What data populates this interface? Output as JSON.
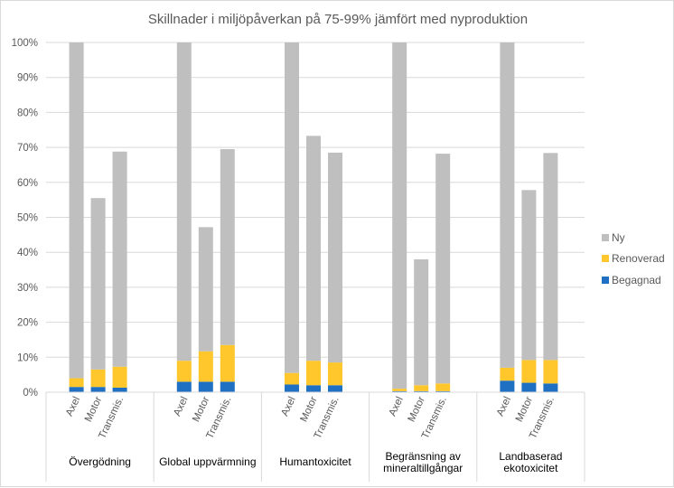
{
  "chart_data": {
    "type": "bar",
    "stacked": true,
    "title": "Skillnader i miljöpåverkan på 75-99% jämfört med nyproduktion",
    "xlabel": "",
    "ylabel": "",
    "ylim": [
      0,
      100
    ],
    "yticks": [
      "0%",
      "10%",
      "20%",
      "30%",
      "40%",
      "50%",
      "60%",
      "70%",
      "80%",
      "90%",
      "100%"
    ],
    "grid": true,
    "legend_position": "right",
    "colors": {
      "Begagnad": "#1f6fc2",
      "Renoverad": "#ffc72c",
      "Ny": "#bfbfbf"
    },
    "groups": [
      {
        "label": [
          "Övergödning"
        ],
        "bars": [
          {
            "label": "Axel",
            "Begagnad": 1.5,
            "Renoverad": 2.5,
            "Ny": 96.0
          },
          {
            "label": "Motor",
            "Begagnad": 1.5,
            "Renoverad": 5.0,
            "Ny": 49.0
          },
          {
            "label": "Transmis.",
            "Begagnad": 1.3,
            "Renoverad": 6.0,
            "Ny": 61.5
          }
        ]
      },
      {
        "label": [
          "Global uppvärmning"
        ],
        "bars": [
          {
            "label": "Axel",
            "Begagnad": 3.0,
            "Renoverad": 6.0,
            "Ny": 91.0
          },
          {
            "label": "Motor",
            "Begagnad": 3.0,
            "Renoverad": 8.7,
            "Ny": 35.5
          },
          {
            "label": "Transmis.",
            "Begagnad": 3.0,
            "Renoverad": 10.5,
            "Ny": 56.0
          }
        ]
      },
      {
        "label": [
          "Humantoxicitet"
        ],
        "bars": [
          {
            "label": "Axel",
            "Begagnad": 2.2,
            "Renoverad": 3.3,
            "Ny": 94.5
          },
          {
            "label": "Motor",
            "Begagnad": 2.0,
            "Renoverad": 7.0,
            "Ny": 64.3
          },
          {
            "label": "Transmis.",
            "Begagnad": 2.0,
            "Renoverad": 6.5,
            "Ny": 60.0
          }
        ]
      },
      {
        "label": [
          "Begränsning av",
          "mineraltillgångar"
        ],
        "bars": [
          {
            "label": "Axel",
            "Begagnad": 0.3,
            "Renoverad": 0.7,
            "Ny": 99.0
          },
          {
            "label": "Motor",
            "Begagnad": 0.3,
            "Renoverad": 1.7,
            "Ny": 36.0
          },
          {
            "label": "Transmis.",
            "Begagnad": 0.3,
            "Renoverad": 2.2,
            "Ny": 65.7
          }
        ]
      },
      {
        "label": [
          "Landbaserad",
          "ekotoxicitet"
        ],
        "bars": [
          {
            "label": "Axel",
            "Begagnad": 3.3,
            "Renoverad": 3.7,
            "Ny": 93.0
          },
          {
            "label": "Motor",
            "Begagnad": 2.7,
            "Renoverad": 6.5,
            "Ny": 48.6
          },
          {
            "label": "Transmis.",
            "Begagnad": 2.5,
            "Renoverad": 6.7,
            "Ny": 59.2
          }
        ]
      }
    ],
    "legend": [
      "Ny",
      "Renoverad",
      "Begagnad"
    ]
  }
}
